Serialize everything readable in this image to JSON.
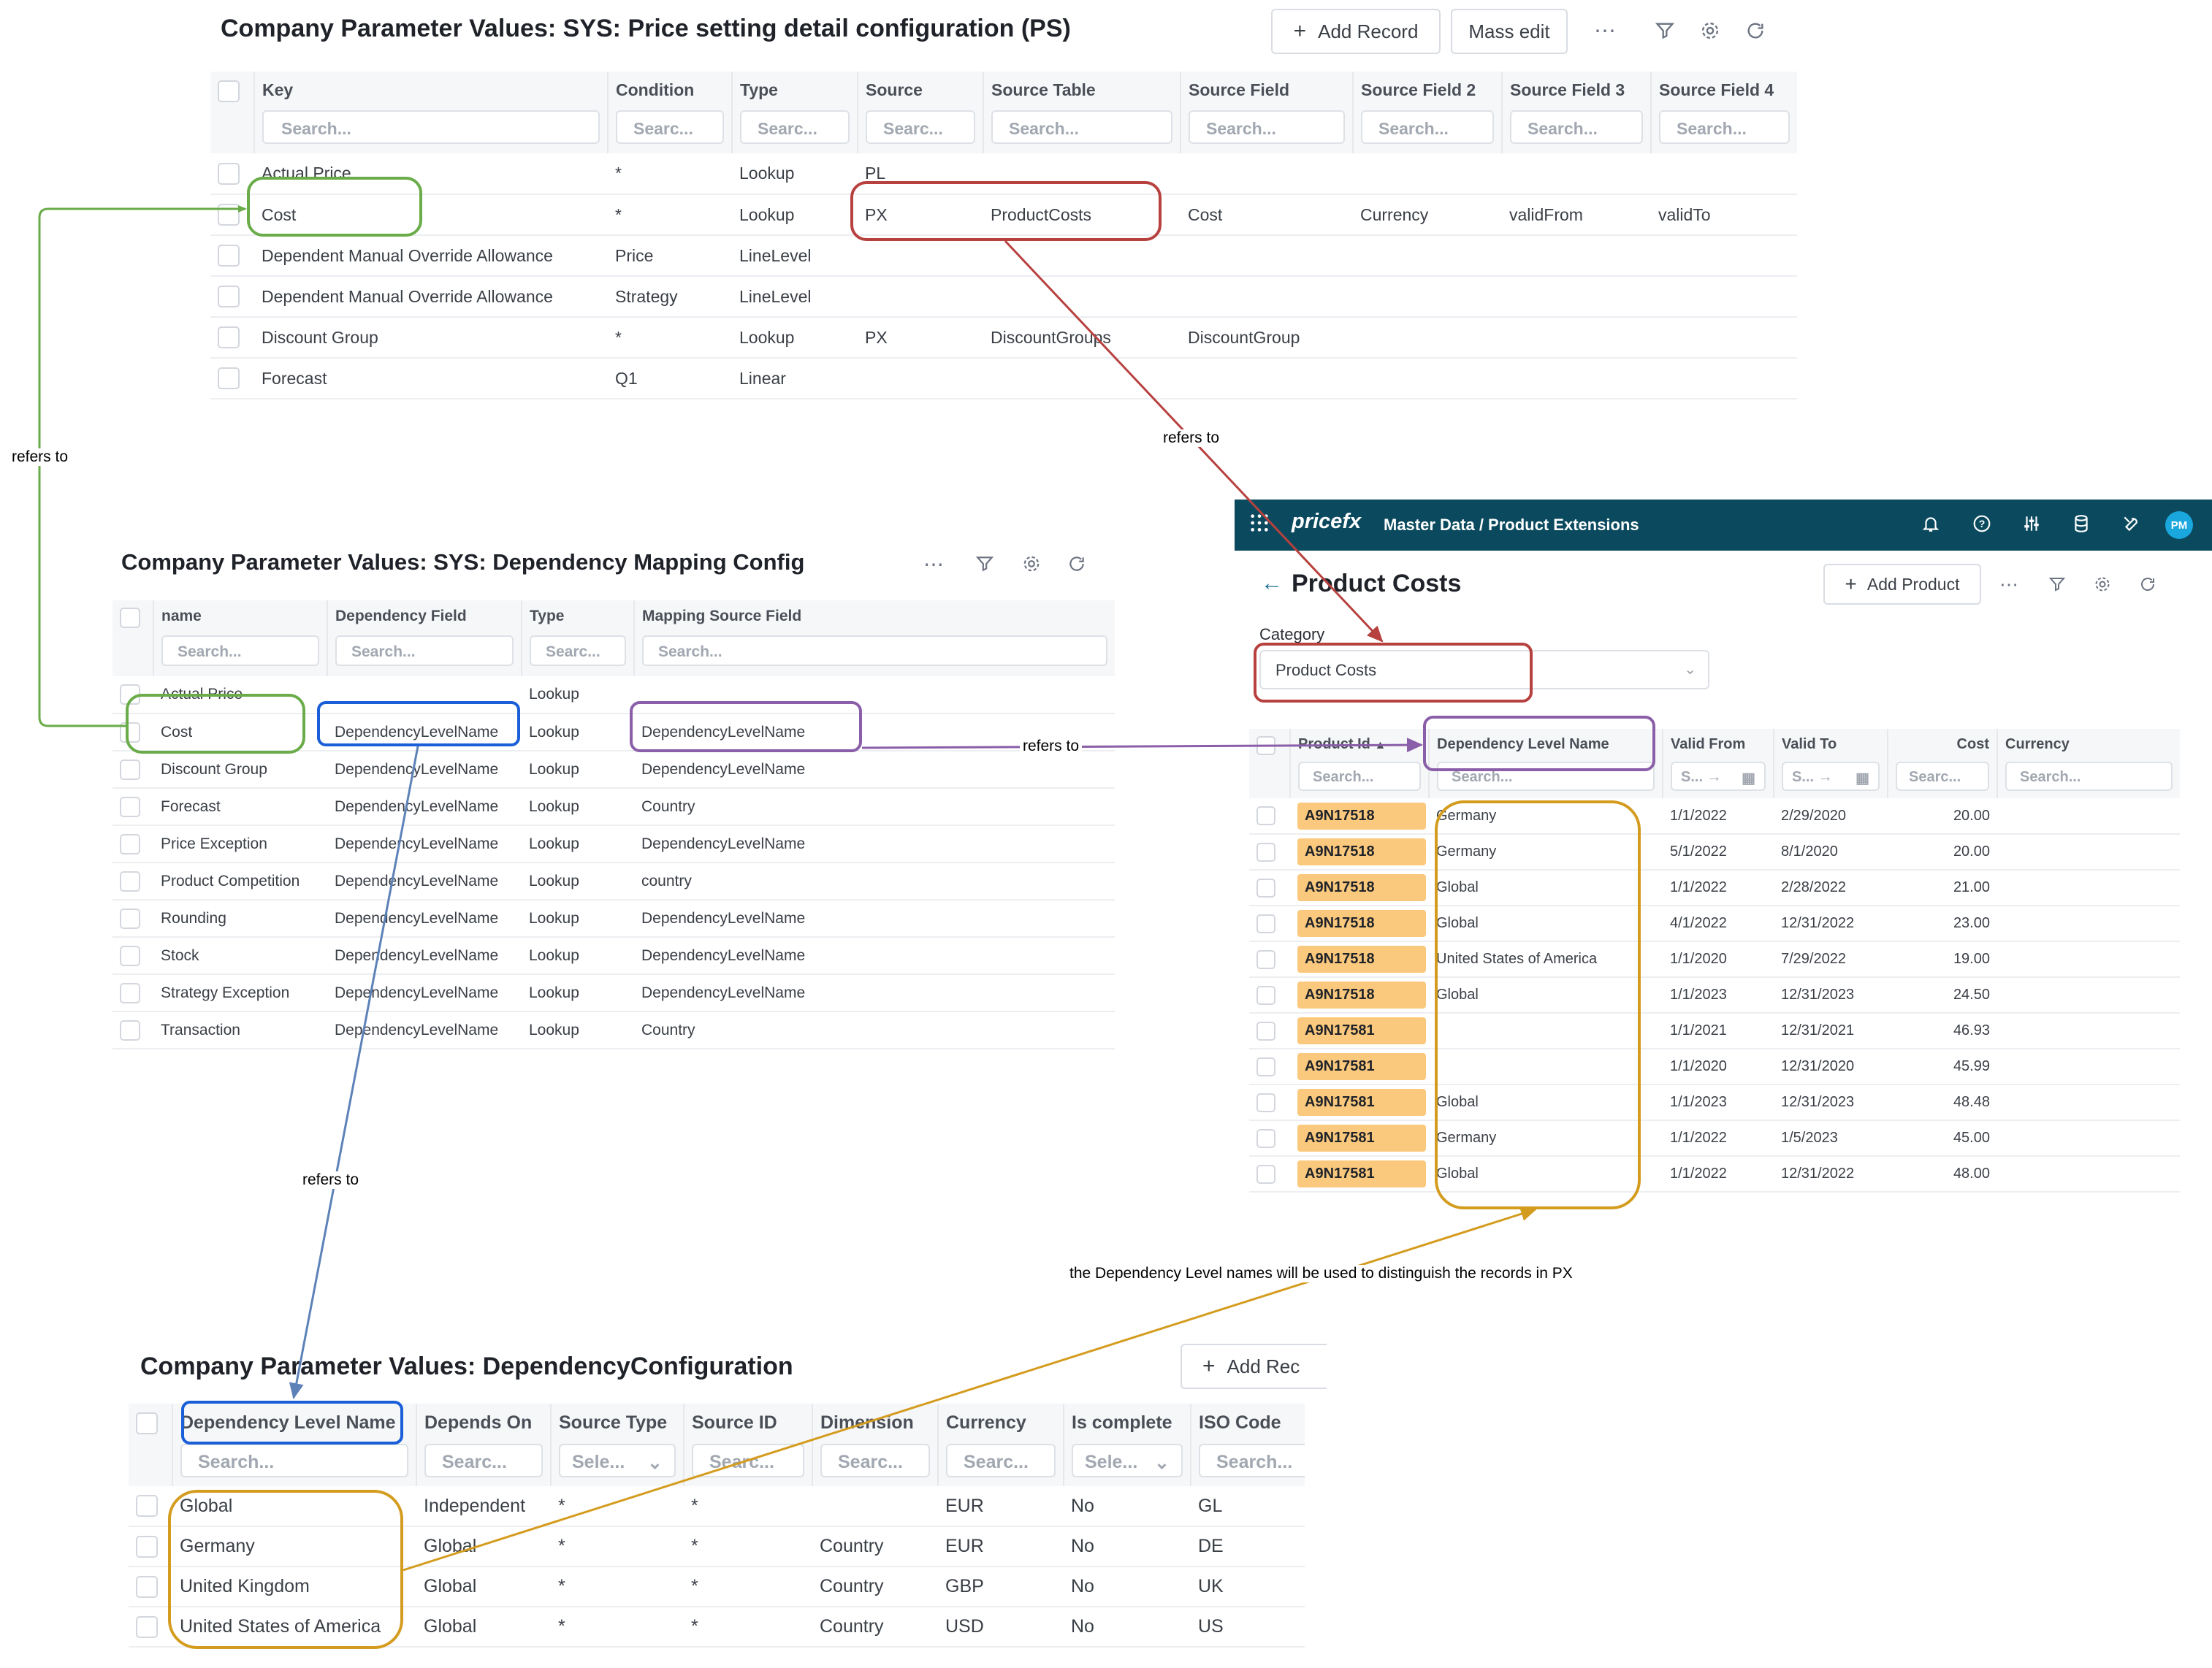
{
  "ps": {
    "title": "Company Parameter Values: SYS: Price setting detail configuration (PS)",
    "add_record": "Add Record",
    "mass_edit": "Mass edit",
    "columns": [
      "Key",
      "Condition",
      "Type",
      "Source",
      "Source Table",
      "Source Field",
      "Source Field 2",
      "Source Field 3",
      "Source Field 4"
    ],
    "search": [
      "Search...",
      "Searc...",
      "Searc...",
      "Searc...",
      "Search...",
      "Search...",
      "Search...",
      "Search...",
      "Search..."
    ],
    "rows": [
      [
        "Actual Price",
        "*",
        "Lookup",
        "PL",
        "",
        "",
        "",
        "",
        ""
      ],
      [
        "Cost",
        "*",
        "Lookup",
        "PX",
        "ProductCosts",
        "Cost",
        "Currency",
        "validFrom",
        "validTo"
      ],
      [
        "Dependent Manual Override Allowance",
        "Price",
        "LineLevel",
        "",
        "",
        "",
        "",
        "",
        ""
      ],
      [
        "Dependent Manual Override Allowance",
        "Strategy",
        "LineLevel",
        "",
        "",
        "",
        "",
        "",
        ""
      ],
      [
        "Discount Group",
        "*",
        "Lookup",
        "PX",
        "DiscountGroups",
        "DiscountGroup",
        "",
        "",
        ""
      ],
      [
        "Forecast",
        "Q1",
        "Linear",
        "",
        "",
        "",
        "",
        "",
        ""
      ]
    ]
  },
  "dm": {
    "title": "Company Parameter Values: SYS: Dependency Mapping Config",
    "columns": [
      "name",
      "Dependency Field",
      "Type",
      "Mapping Source Field"
    ],
    "search": [
      "Search...",
      "Search...",
      "Searc...",
      "Search..."
    ],
    "rows": [
      [
        "Actual Price",
        "",
        "Lookup",
        ""
      ],
      [
        "Cost",
        "DependencyLevelName",
        "Lookup",
        "DependencyLevelName"
      ],
      [
        "Discount Group",
        "DependencyLevelName",
        "Lookup",
        "DependencyLevelName"
      ],
      [
        "Forecast",
        "DependencyLevelName",
        "Lookup",
        "Country"
      ],
      [
        "Price Exception",
        "DependencyLevelName",
        "Lookup",
        "DependencyLevelName"
      ],
      [
        "Product Competition",
        "DependencyLevelName",
        "Lookup",
        "country"
      ],
      [
        "Rounding",
        "DependencyLevelName",
        "Lookup",
        "DependencyLevelName"
      ],
      [
        "Stock",
        "DependencyLevelName",
        "Lookup",
        "DependencyLevelName"
      ],
      [
        "Strategy Exception",
        "DependencyLevelName",
        "Lookup",
        "DependencyLevelName"
      ],
      [
        "Transaction",
        "DependencyLevelName",
        "Lookup",
        "Country"
      ]
    ]
  },
  "pc": {
    "app_logo": "pricefx",
    "breadcrumb": "Master Data / Product Extensions",
    "avatar": "PM",
    "title": "Product Costs",
    "add_product": "Add Product",
    "category_label": "Category",
    "category_value": "Product Costs",
    "columns": [
      "Product Id",
      "Dependency Level Name",
      "Valid From",
      "Valid To",
      "Cost",
      "Currency"
    ],
    "search": [
      "Search...",
      "Search...",
      "S...",
      "S...",
      "Searc...",
      "Search..."
    ],
    "rows": [
      [
        "A9N17518",
        "Germany",
        "1/1/2022",
        "2/29/2020",
        "20.00",
        ""
      ],
      [
        "A9N17518",
        "Germany",
        "5/1/2022",
        "8/1/2020",
        "20.00",
        ""
      ],
      [
        "A9N17518",
        "Global",
        "1/1/2022",
        "2/28/2022",
        "21.00",
        ""
      ],
      [
        "A9N17518",
        "Global",
        "4/1/2022",
        "12/31/2022",
        "23.00",
        ""
      ],
      [
        "A9N17518",
        "United States of America",
        "1/1/2020",
        "7/29/2022",
        "19.00",
        ""
      ],
      [
        "A9N17518",
        "Global",
        "1/1/2023",
        "12/31/2023",
        "24.50",
        ""
      ],
      [
        "A9N17581",
        "",
        "1/1/2021",
        "12/31/2021",
        "46.93",
        ""
      ],
      [
        "A9N17581",
        "",
        "1/1/2020",
        "12/31/2020",
        "45.99",
        ""
      ],
      [
        "A9N17581",
        "Global",
        "1/1/2023",
        "12/31/2023",
        "48.48",
        ""
      ],
      [
        "A9N17581",
        "Germany",
        "1/1/2022",
        "1/5/2023",
        "45.00",
        ""
      ],
      [
        "A9N17581",
        "Global",
        "1/1/2022",
        "12/31/2022",
        "48.00",
        ""
      ]
    ]
  },
  "dc": {
    "title": "Company Parameter Values: DependencyConfiguration",
    "add_record": "Add Rec",
    "columns": [
      "Dependency Level Name",
      "Depends On",
      "Source Type",
      "Source ID",
      "Dimension",
      "Currency",
      "Is complete",
      "ISO Code"
    ],
    "search": [
      "Search...",
      "Searc...",
      "Sele...",
      "Searc...",
      "Searc...",
      "Searc...",
      "Sele...",
      "Search..."
    ],
    "rows": [
      [
        "Global",
        "Independent",
        "*",
        "*",
        "",
        "EUR",
        "No",
        "GL"
      ],
      [
        "Germany",
        "Global",
        "*",
        "*",
        "Country",
        "EUR",
        "No",
        "DE"
      ],
      [
        "United Kingdom",
        "Global",
        "*",
        "*",
        "Country",
        "GBP",
        "No",
        "UK"
      ],
      [
        "United States of America",
        "Global",
        "*",
        "*",
        "Country",
        "USD",
        "No",
        "US"
      ]
    ]
  },
  "annotations": {
    "refers_to": "refers to",
    "note": "the Dependency Level names will be used  to distinguish the records in PX"
  },
  "colors": {
    "green": "#6aac4a",
    "red": "#b7413f",
    "purple": "#8a5ea8",
    "blue": "#1a5fd8",
    "steel_blue": "#5d82b8",
    "gold": "#d49c1f",
    "nav_bg": "#0b4a5e",
    "product_id_bg": "#fbc97d"
  }
}
